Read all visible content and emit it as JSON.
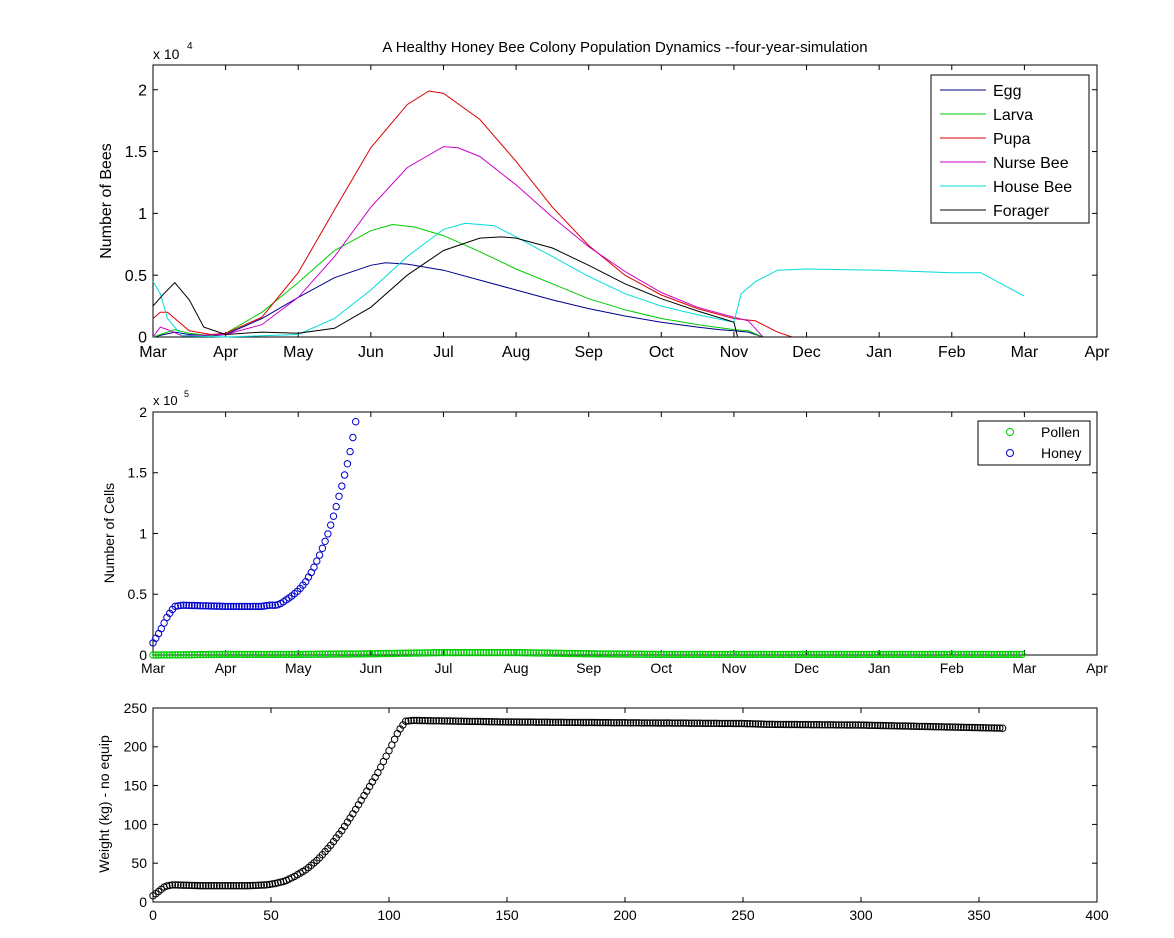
{
  "chart_data": [
    {
      "type": "line",
      "title": "A Healthy Honey Bee Colony Population Dynamics --four-year-simulation",
      "xlabel": "",
      "ylabel": "Number of Bees",
      "y_exponent_label": "x 10",
      "y_exponent_power": "4",
      "x_unit": "month",
      "xlim": [
        0,
        13
      ],
      "ylim": [
        0,
        22000
      ],
      "x_ticks": [
        0,
        1,
        2,
        3,
        4,
        5,
        6,
        7,
        8,
        9,
        10,
        11,
        12,
        13
      ],
      "x_tick_labels": [
        "Mar",
        "Apr",
        "May",
        "Jun",
        "Jul",
        "Aug",
        "Sep",
        "Oct",
        "Nov",
        "Dec",
        "Jan",
        "Feb",
        "Mar",
        "Apr"
      ],
      "y_ticks": [
        0,
        5000,
        10000,
        15000,
        20000
      ],
      "y_tick_labels": [
        "0",
        "0.5",
        "1",
        "1.5",
        "2"
      ],
      "legend_position": "top-right",
      "grid": false,
      "series": [
        {
          "name": "Egg",
          "color": "#00008b",
          "points": [
            [
              0,
              0
            ],
            [
              0.3,
              400
            ],
            [
              0.5,
              200
            ],
            [
              0.8,
              80
            ],
            [
              1,
              200
            ],
            [
              1.5,
              1500
            ],
            [
              2,
              3200
            ],
            [
              2.5,
              4800
            ],
            [
              3,
              5800
            ],
            [
              3.2,
              6000
            ],
            [
              3.5,
              5900
            ],
            [
              4,
              5400
            ],
            [
              4.5,
              4600
            ],
            [
              5,
              3800
            ],
            [
              5.5,
              3000
            ],
            [
              6,
              2300
            ],
            [
              6.5,
              1700
            ],
            [
              7,
              1200
            ],
            [
              7.5,
              800
            ],
            [
              7.8,
              600
            ],
            [
              8,
              500
            ],
            [
              8.2,
              400
            ],
            [
              8.4,
              0
            ],
            [
              12,
              0
            ]
          ]
        },
        {
          "name": "Larva",
          "color": "#00cc00",
          "points": [
            [
              0,
              0
            ],
            [
              0.3,
              600
            ],
            [
              0.5,
              300
            ],
            [
              0.8,
              100
            ],
            [
              1,
              300
            ],
            [
              1.5,
              2000
            ],
            [
              2,
              4400
            ],
            [
              2.5,
              7000
            ],
            [
              3,
              8600
            ],
            [
              3.3,
              9100
            ],
            [
              3.6,
              8900
            ],
            [
              4,
              8200
            ],
            [
              4.5,
              6900
            ],
            [
              5,
              5500
            ],
            [
              5.5,
              4300
            ],
            [
              6,
              3100
            ],
            [
              6.5,
              2200
            ],
            [
              7,
              1500
            ],
            [
              7.5,
              1000
            ],
            [
              8,
              600
            ],
            [
              8.2,
              500
            ],
            [
              8.4,
              0
            ],
            [
              12,
              0
            ]
          ]
        },
        {
          "name": "Pupa",
          "color": "#dd0000",
          "points": [
            [
              0,
              1500
            ],
            [
              0.1,
              2000
            ],
            [
              0.2,
              2000
            ],
            [
              0.3,
              1500
            ],
            [
              0.5,
              500
            ],
            [
              0.8,
              200
            ],
            [
              1,
              300
            ],
            [
              1.5,
              1600
            ],
            [
              2,
              5200
            ],
            [
              2.5,
              10300
            ],
            [
              3,
              15300
            ],
            [
              3.5,
              18800
            ],
            [
              3.8,
              19900
            ],
            [
              4,
              19700
            ],
            [
              4.5,
              17600
            ],
            [
              5,
              14200
            ],
            [
              5.5,
              10500
            ],
            [
              6,
              7400
            ],
            [
              6.5,
              5000
            ],
            [
              7,
              3400
            ],
            [
              7.5,
              2300
            ],
            [
              8,
              1500
            ],
            [
              8.3,
              1300
            ],
            [
              8.6,
              400
            ],
            [
              8.8,
              0
            ],
            [
              12,
              0
            ]
          ]
        },
        {
          "name": "Nurse Bee",
          "color": "#cc00cc",
          "points": [
            [
              0,
              0
            ],
            [
              0.1,
              800
            ],
            [
              0.2,
              600
            ],
            [
              0.4,
              100
            ],
            [
              1,
              200
            ],
            [
              1.5,
              1000
            ],
            [
              2,
              3200
            ],
            [
              2.5,
              6500
            ],
            [
              3,
              10500
            ],
            [
              3.5,
              13700
            ],
            [
              4,
              15400
            ],
            [
              4.2,
              15300
            ],
            [
              4.5,
              14600
            ],
            [
              5,
              12300
            ],
            [
              5.5,
              9700
            ],
            [
              6,
              7300
            ],
            [
              6.5,
              5300
            ],
            [
              7,
              3600
            ],
            [
              7.5,
              2400
            ],
            [
              8,
              1600
            ],
            [
              8.2,
              1300
            ],
            [
              8.4,
              0
            ],
            [
              12,
              0
            ]
          ]
        },
        {
          "name": "House Bee",
          "color": "#00dddd",
          "points": [
            [
              0,
              4500
            ],
            [
              0.1,
              3500
            ],
            [
              0.2,
              1500
            ],
            [
              0.4,
              100
            ],
            [
              1,
              0
            ],
            [
              1.5,
              100
            ],
            [
              2,
              200
            ],
            [
              2.5,
              1500
            ],
            [
              3,
              3800
            ],
            [
              3.5,
              6500
            ],
            [
              4,
              8700
            ],
            [
              4.3,
              9200
            ],
            [
              4.7,
              9000
            ],
            [
              5,
              8100
            ],
            [
              5.5,
              6500
            ],
            [
              6,
              4900
            ],
            [
              6.5,
              3500
            ],
            [
              7,
              2500
            ],
            [
              7.5,
              1800
            ],
            [
              8,
              1200
            ],
            [
              8.1,
              3500
            ],
            [
              8.3,
              4500
            ],
            [
              8.6,
              5400
            ],
            [
              9,
              5500
            ],
            [
              10,
              5400
            ],
            [
              11,
              5200
            ],
            [
              11.4,
              5200
            ],
            [
              12,
              3300
            ]
          ]
        },
        {
          "name": "Forager",
          "color": "#000000",
          "points": [
            [
              0,
              2500
            ],
            [
              0.15,
              3500
            ],
            [
              0.3,
              4400
            ],
            [
              0.5,
              3000
            ],
            [
              0.7,
              800
            ],
            [
              1,
              200
            ],
            [
              1.5,
              400
            ],
            [
              2,
              300
            ],
            [
              2.5,
              700
            ],
            [
              3,
              2400
            ],
            [
              3.5,
              5000
            ],
            [
              4,
              7000
            ],
            [
              4.5,
              8000
            ],
            [
              4.8,
              8100
            ],
            [
              5,
              8000
            ],
            [
              5.5,
              7200
            ],
            [
              6,
              5800
            ],
            [
              6.5,
              4300
            ],
            [
              7,
              3100
            ],
            [
              7.5,
              2100
            ],
            [
              8,
              1200
            ],
            [
              8.05,
              0
            ],
            [
              12,
              0
            ]
          ]
        }
      ]
    },
    {
      "type": "scatter",
      "title": "",
      "xlabel": "",
      "ylabel": "Number of Cells",
      "y_exponent_label": "x 10",
      "y_exponent_power": "5",
      "x_unit": "month",
      "xlim": [
        0,
        13
      ],
      "ylim": [
        0,
        200000
      ],
      "x_ticks": [
        0,
        1,
        2,
        3,
        4,
        5,
        6,
        7,
        8,
        9,
        10,
        11,
        12,
        13
      ],
      "x_tick_labels": [
        "Mar",
        "Apr",
        "May",
        "Jun",
        "Jul",
        "Aug",
        "Sep",
        "Oct",
        "Nov",
        "Dec",
        "Jan",
        "Feb",
        "Mar",
        "Apr"
      ],
      "y_ticks": [
        0,
        50000,
        100000,
        150000,
        200000
      ],
      "y_tick_labels": [
        "0",
        "0.5",
        "1",
        "1.5",
        "2"
      ],
      "legend_position": "top-right",
      "grid": false,
      "series": [
        {
          "name": "Pollen",
          "color": "#00cc00",
          "points": [
            [
              0,
              0
            ],
            [
              1,
              500
            ],
            [
              2,
              500
            ],
            [
              3,
              1000
            ],
            [
              4,
              2000
            ],
            [
              5,
              2000
            ],
            [
              6,
              1000
            ],
            [
              7,
              500
            ],
            [
              8,
              500
            ],
            [
              9,
              500
            ],
            [
              10,
              500
            ],
            [
              11,
              500
            ],
            [
              12,
              500
            ]
          ]
        },
        {
          "name": "Honey",
          "color": "#0000cc",
          "points": [
            [
              0,
              10000
            ],
            [
              0.1,
              20000
            ],
            [
              0.2,
              32000
            ],
            [
              0.3,
              40000
            ],
            [
              0.4,
              41000
            ],
            [
              1,
              40000
            ],
            [
              1.5,
              40000
            ],
            [
              1.6,
              41000
            ],
            [
              1.7,
              41000
            ],
            [
              1.75,
              42000
            ],
            [
              1.8,
              44000
            ],
            [
              1.9,
              48000
            ],
            [
              2,
              53000
            ],
            [
              2.1,
              60000
            ],
            [
              2.2,
              70000
            ],
            [
              2.3,
              83000
            ],
            [
              2.4,
              98000
            ],
            [
              2.5,
              117000
            ],
            [
              2.6,
              139000
            ],
            [
              2.7,
              163000
            ],
            [
              2.75,
              178000
            ],
            [
              2.8,
              195000
            ]
          ]
        }
      ]
    },
    {
      "type": "scatter",
      "title": "",
      "xlabel": "",
      "ylabel": "Weight (kg) - no equip",
      "xlim": [
        0,
        400
      ],
      "ylim": [
        0,
        250
      ],
      "x_ticks": [
        0,
        50,
        100,
        150,
        200,
        250,
        300,
        350,
        400
      ],
      "x_tick_labels": [
        "0",
        "50",
        "100",
        "150",
        "200",
        "250",
        "300",
        "350",
        "400"
      ],
      "y_ticks": [
        0,
        50,
        100,
        150,
        200,
        250
      ],
      "y_tick_labels": [
        "0",
        "50",
        "100",
        "150",
        "200",
        "250"
      ],
      "grid": false,
      "series": [
        {
          "name": "",
          "color": "#000000",
          "points": [
            [
              0,
              8
            ],
            [
              3,
              15
            ],
            [
              5,
              20
            ],
            [
              8,
              22
            ],
            [
              10,
              22
            ],
            [
              20,
              21
            ],
            [
              30,
              21
            ],
            [
              40,
              21
            ],
            [
              48,
              22
            ],
            [
              52,
              24
            ],
            [
              56,
              27
            ],
            [
              60,
              33
            ],
            [
              65,
              42
            ],
            [
              70,
              55
            ],
            [
              75,
              72
            ],
            [
              80,
              92
            ],
            [
              85,
              115
            ],
            [
              90,
              140
            ],
            [
              95,
              165
            ],
            [
              100,
              195
            ],
            [
              104,
              220
            ],
            [
              107,
              233
            ],
            [
              110,
              234
            ],
            [
              150,
              232
            ],
            [
              200,
              231
            ],
            [
              250,
              230
            ],
            [
              260,
              229
            ],
            [
              300,
              228
            ],
            [
              330,
              226
            ],
            [
              360,
              224
            ]
          ]
        }
      ]
    }
  ]
}
